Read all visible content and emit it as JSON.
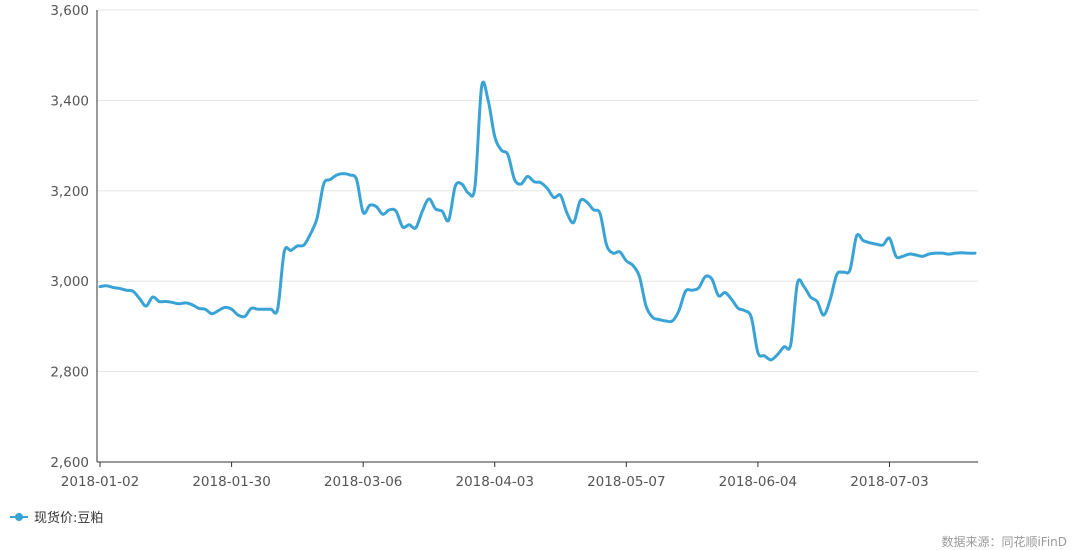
{
  "chart_data": {
    "type": "line",
    "x_tick_labels": [
      "2018-01-02",
      "2018-01-30",
      "2018-03-06",
      "2018-04-03",
      "2018-05-07",
      "2018-06-04",
      "2018-07-03"
    ],
    "y_tick_labels": [
      "2,600",
      "2,800",
      "3,000",
      "3,200",
      "3,400",
      "3,600"
    ],
    "ylim": [
      2600,
      3600
    ],
    "grid": "horizontal",
    "legend_position": "bottom-left",
    "colors": {
      "series": "#3aa3d6",
      "grid": "#e6e6e6",
      "axis": "#333333"
    },
    "series": [
      {
        "name": "现货价:豆粕",
        "x": [
          "2018-01-02",
          "2018-01-03",
          "2018-01-04",
          "2018-01-05",
          "2018-01-08",
          "2018-01-09",
          "2018-01-10",
          "2018-01-11",
          "2018-01-12",
          "2018-01-15",
          "2018-01-16",
          "2018-01-17",
          "2018-01-18",
          "2018-01-19",
          "2018-01-22",
          "2018-01-23",
          "2018-01-24",
          "2018-01-25",
          "2018-01-26",
          "2018-01-29",
          "2018-01-30",
          "2018-01-31",
          "2018-02-01",
          "2018-02-02",
          "2018-02-05",
          "2018-02-06",
          "2018-02-07",
          "2018-02-08",
          "2018-02-09",
          "2018-02-12",
          "2018-02-13",
          "2018-02-14",
          "2018-02-22",
          "2018-02-23",
          "2018-02-26",
          "2018-02-27",
          "2018-02-28",
          "2018-03-01",
          "2018-03-02",
          "2018-03-05",
          "2018-03-06",
          "2018-03-07",
          "2018-03-08",
          "2018-03-09",
          "2018-03-12",
          "2018-03-13",
          "2018-03-14",
          "2018-03-15",
          "2018-03-16",
          "2018-03-19",
          "2018-03-20",
          "2018-03-21",
          "2018-03-22",
          "2018-03-23",
          "2018-03-26",
          "2018-03-27",
          "2018-03-28",
          "2018-03-29",
          "2018-03-30",
          "2018-04-02",
          "2018-04-03",
          "2018-04-04",
          "2018-04-09",
          "2018-04-10",
          "2018-04-11",
          "2018-04-12",
          "2018-04-13",
          "2018-04-16",
          "2018-04-17",
          "2018-04-18",
          "2018-04-19",
          "2018-04-20",
          "2018-04-23",
          "2018-04-24",
          "2018-04-25",
          "2018-04-26",
          "2018-04-27",
          "2018-05-02",
          "2018-05-03",
          "2018-05-04",
          "2018-05-07",
          "2018-05-08",
          "2018-05-09",
          "2018-05-10",
          "2018-05-11",
          "2018-05-14",
          "2018-05-15",
          "2018-05-16",
          "2018-05-17",
          "2018-05-18",
          "2018-05-21",
          "2018-05-22",
          "2018-05-23",
          "2018-05-24",
          "2018-05-25",
          "2018-05-28",
          "2018-05-29",
          "2018-05-30",
          "2018-05-31",
          "2018-06-01",
          "2018-06-04",
          "2018-06-05",
          "2018-06-06",
          "2018-06-07",
          "2018-06-08",
          "2018-06-11",
          "2018-06-12",
          "2018-06-13",
          "2018-06-14",
          "2018-06-15",
          "2018-06-19",
          "2018-06-20",
          "2018-06-21",
          "2018-06-22",
          "2018-06-25",
          "2018-06-26",
          "2018-06-27",
          "2018-06-28",
          "2018-06-29",
          "2018-07-02",
          "2018-07-03",
          "2018-07-04",
          "2018-07-05",
          "2018-07-06",
          "2018-07-09",
          "2018-07-10",
          "2018-07-11",
          "2018-07-12",
          "2018-07-13",
          "2018-07-16",
          "2018-07-17",
          "2018-07-18",
          "2018-07-19",
          "2018-07-20"
        ],
        "values": [
          2988,
          2990,
          2986,
          2984,
          2980,
          2978,
          2962,
          2945,
          2965,
          2955,
          2955,
          2953,
          2950,
          2952,
          2948,
          2940,
          2938,
          2928,
          2935,
          2942,
          2938,
          2925,
          2922,
          2940,
          2938,
          2938,
          2938,
          2938,
          3065,
          3068,
          3078,
          3080,
          3105,
          3140,
          3215,
          3225,
          3235,
          3238,
          3235,
          3225,
          3152,
          3168,
          3165,
          3148,
          3158,
          3155,
          3120,
          3125,
          3118,
          3155,
          3182,
          3160,
          3155,
          3135,
          3210,
          3215,
          3195,
          3210,
          3430,
          3400,
          3320,
          3290,
          3280,
          3225,
          3215,
          3232,
          3220,
          3218,
          3205,
          3185,
          3190,
          3150,
          3130,
          3178,
          3175,
          3158,
          3150,
          3080,
          3062,
          3065,
          3045,
          3035,
          3010,
          2945,
          2920,
          2915,
          2912,
          2912,
          2935,
          2978,
          2980,
          2985,
          3010,
          3005,
          2968,
          2975,
          2960,
          2940,
          2935,
          2920,
          2842,
          2835,
          2826,
          2838,
          2855,
          2860,
          2995,
          2988,
          2965,
          2955,
          2925,
          2960,
          3015,
          3020,
          3025,
          3100,
          3090,
          3085,
          3082,
          3080,
          3095,
          3055,
          3055,
          3060,
          3058,
          3055,
          3060,
          3062,
          3062,
          3060,
          3062,
          3063,
          3062,
          3062
        ]
      }
    ]
  },
  "legend": {
    "label": "现货价:豆粕"
  },
  "source": "数据来源：同花顺iFinD"
}
